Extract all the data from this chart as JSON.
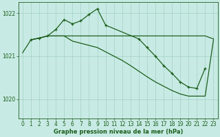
{
  "title": "Graphe pression niveau de la mer (hPa)",
  "bg_color": "#c8eae4",
  "grid_color": "#99ccbb",
  "line_color": "#1a5e1a",
  "ylim": [
    1019.55,
    1022.25
  ],
  "yticks": [
    1020,
    1021,
    1022
  ],
  "xlim": [
    -0.5,
    23.5
  ],
  "xticks": [
    0,
    1,
    2,
    3,
    4,
    5,
    6,
    7,
    8,
    9,
    10,
    11,
    12,
    13,
    14,
    15,
    16,
    17,
    18,
    19,
    20,
    21,
    22,
    23
  ],
  "line1_x": [
    1,
    2,
    3,
    4,
    5,
    6,
    7,
    8,
    9,
    10,
    11,
    12,
    13,
    14,
    15,
    16,
    17,
    18,
    19,
    20,
    21,
    22,
    23
  ],
  "line1_y": [
    1021.38,
    1021.42,
    1021.47,
    1021.47,
    1021.47,
    1021.47,
    1021.47,
    1021.47,
    1021.47,
    1021.47,
    1021.47,
    1021.47,
    1021.47,
    1021.47,
    1021.47,
    1021.47,
    1021.47,
    1021.47,
    1021.47,
    1021.47,
    1021.47,
    1021.47,
    1021.4
  ],
  "line2_x": [
    0,
    1,
    2,
    3,
    4,
    5,
    6,
    7,
    8,
    9,
    10,
    11,
    12,
    13,
    14,
    15,
    16,
    17,
    18,
    19,
    20,
    21,
    22,
    23
  ],
  "line2_y": [
    1021.08,
    1021.38,
    1021.42,
    1021.47,
    1021.47,
    1021.47,
    1021.35,
    1021.3,
    1021.25,
    1021.2,
    1021.1,
    1021.0,
    1020.9,
    1020.78,
    1020.65,
    1020.52,
    1020.4,
    1020.3,
    1020.2,
    1020.12,
    1020.07,
    1020.07,
    1020.07,
    1021.38
  ],
  "line3_x": [
    1,
    2,
    3,
    4,
    5,
    6,
    7,
    8,
    9,
    10,
    14,
    15,
    16,
    17,
    18,
    19,
    20,
    21,
    22
  ],
  "line3_y": [
    1021.38,
    1021.42,
    1021.47,
    1021.62,
    1021.85,
    1021.75,
    1021.82,
    1021.97,
    1022.1,
    1021.72,
    1021.4,
    1021.2,
    1021.0,
    1020.78,
    1020.6,
    1020.4,
    1020.28,
    1020.25,
    1020.72
  ]
}
